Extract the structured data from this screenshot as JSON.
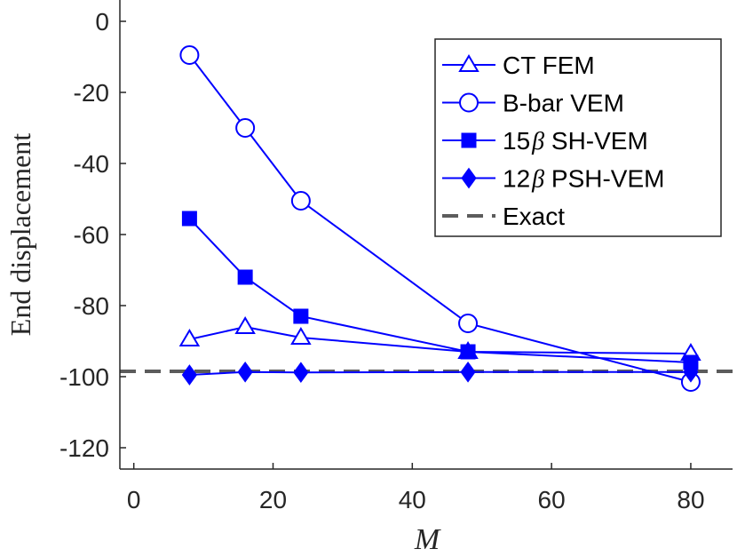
{
  "chart_data": {
    "type": "line",
    "title": "",
    "xlabel": "M",
    "ylabel": "End displacement",
    "xlim": [
      -2,
      86
    ],
    "ylim": [
      -126,
      6
    ],
    "xticks": [
      0,
      20,
      40,
      60,
      80
    ],
    "yticks": [
      0,
      -20,
      -40,
      -60,
      -80,
      -100,
      -120
    ],
    "x": [
      8,
      16,
      24,
      48,
      80
    ],
    "colors": {
      "series": "#0000ff",
      "exact": "#5c5c5c",
      "axis": "#262626"
    },
    "series": [
      {
        "name": "CT FEM",
        "marker": "triangle-open",
        "values": [
          -89.5,
          -86,
          -89,
          -93,
          -93.5
        ]
      },
      {
        "name": "B-bar VEM",
        "marker": "circle-open",
        "values": [
          -9.5,
          -30,
          -50.5,
          -85,
          -101.5
        ]
      },
      {
        "name": "15β SH-VEM",
        "marker": "square-filled",
        "values": [
          -55.5,
          -72,
          -83,
          -93,
          -96
        ]
      },
      {
        "name": "12β PSH-VEM",
        "marker": "diamond-filled",
        "values": [
          -99.5,
          -98.7,
          -98.8,
          -98.7,
          -98.7
        ]
      }
    ],
    "legend": {
      "placement": "top-right",
      "entries": [
        {
          "prefix": "",
          "beta": "",
          "suffix": "CT FEM"
        },
        {
          "prefix": "",
          "beta": "",
          "suffix": "B-bar VEM"
        },
        {
          "prefix": "15",
          "beta": "β",
          "suffix": " SH-VEM"
        },
        {
          "prefix": "12",
          "beta": "β",
          "suffix": " PSH-VEM"
        },
        {
          "prefix": "",
          "beta": "",
          "suffix": "Exact"
        }
      ]
    },
    "reference_line": {
      "name": "Exact",
      "value": -98.5,
      "style": "dashed"
    }
  }
}
